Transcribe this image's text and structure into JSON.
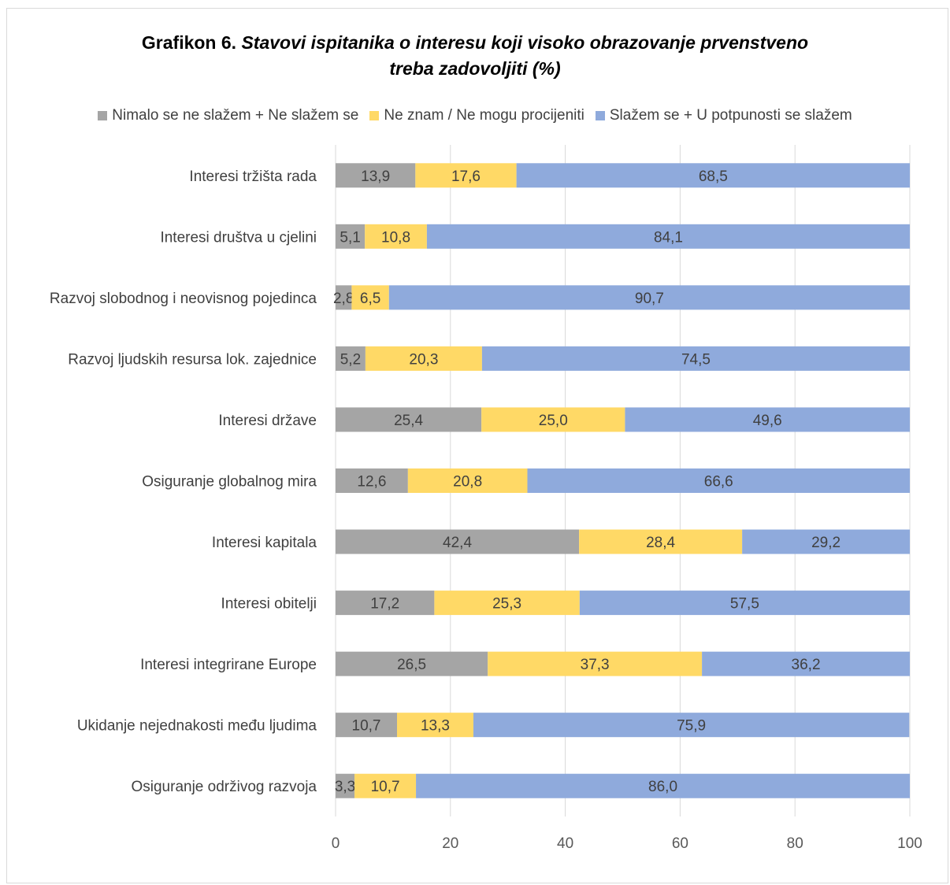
{
  "title": {
    "prefix": "Grafikon 6.",
    "line1": "Stavovi ispitanika o interesu koji visoko obrazovanje prvenstveno",
    "line2": "treba zadovoljiti (%)"
  },
  "chart_data": {
    "type": "bar",
    "orientation": "horizontal",
    "stacked": true,
    "categories": [
      "Interesi tržišta rada",
      "Interesi društva u cjelini",
      "Razvoj slobodnog i neovisnog pojedinca",
      "Razvoj ljudskih resursa lok. zajednice",
      "Interesi države",
      "Osiguranje globalnog mira",
      "Interesi kapitala",
      "Interesi obitelji",
      "Interesi integrirane Europe",
      "Ukidanje nejednakosti među ljudima",
      "Osiguranje održivog razvoja"
    ],
    "series": [
      {
        "name": "Nimalo se ne slažem + Ne slažem se",
        "color": "#a5a5a5",
        "values": [
          13.9,
          5.1,
          2.8,
          5.2,
          25.4,
          12.6,
          42.4,
          17.2,
          26.5,
          10.7,
          3.3
        ],
        "labels": [
          "13,9",
          "5,1",
          "2,8",
          "5,2",
          "25,4",
          "12,6",
          "42,4",
          "17,2",
          "26,5",
          "10,7",
          "3,3"
        ]
      },
      {
        "name": "Ne znam / Ne mogu procijeniti",
        "color": "#ffd966",
        "values": [
          17.6,
          10.8,
          6.5,
          20.3,
          25.0,
          20.8,
          28.4,
          25.3,
          37.3,
          13.3,
          10.7
        ],
        "labels": [
          "17,6",
          "10,8",
          "6,5",
          "20,3",
          "25,0",
          "20,8",
          "28,4",
          "25,3",
          "37,3",
          "13,3",
          "10,7"
        ]
      },
      {
        "name": "Slažem se + U potpunosti se slažem",
        "color": "#8faadc",
        "values": [
          68.5,
          84.1,
          90.7,
          74.5,
          49.6,
          66.6,
          29.2,
          57.5,
          36.2,
          75.9,
          86.0
        ],
        "labels": [
          "68,5",
          "84,1",
          "90,7",
          "74,5",
          "49,6",
          "66,6",
          "29,2",
          "57,5",
          "36,2",
          "75,9",
          "86,0"
        ]
      }
    ],
    "xlim": [
      0,
      100
    ],
    "xticks": [
      "0",
      "20",
      "40",
      "60",
      "80",
      "100"
    ],
    "grid": true,
    "legend_position": "top"
  }
}
